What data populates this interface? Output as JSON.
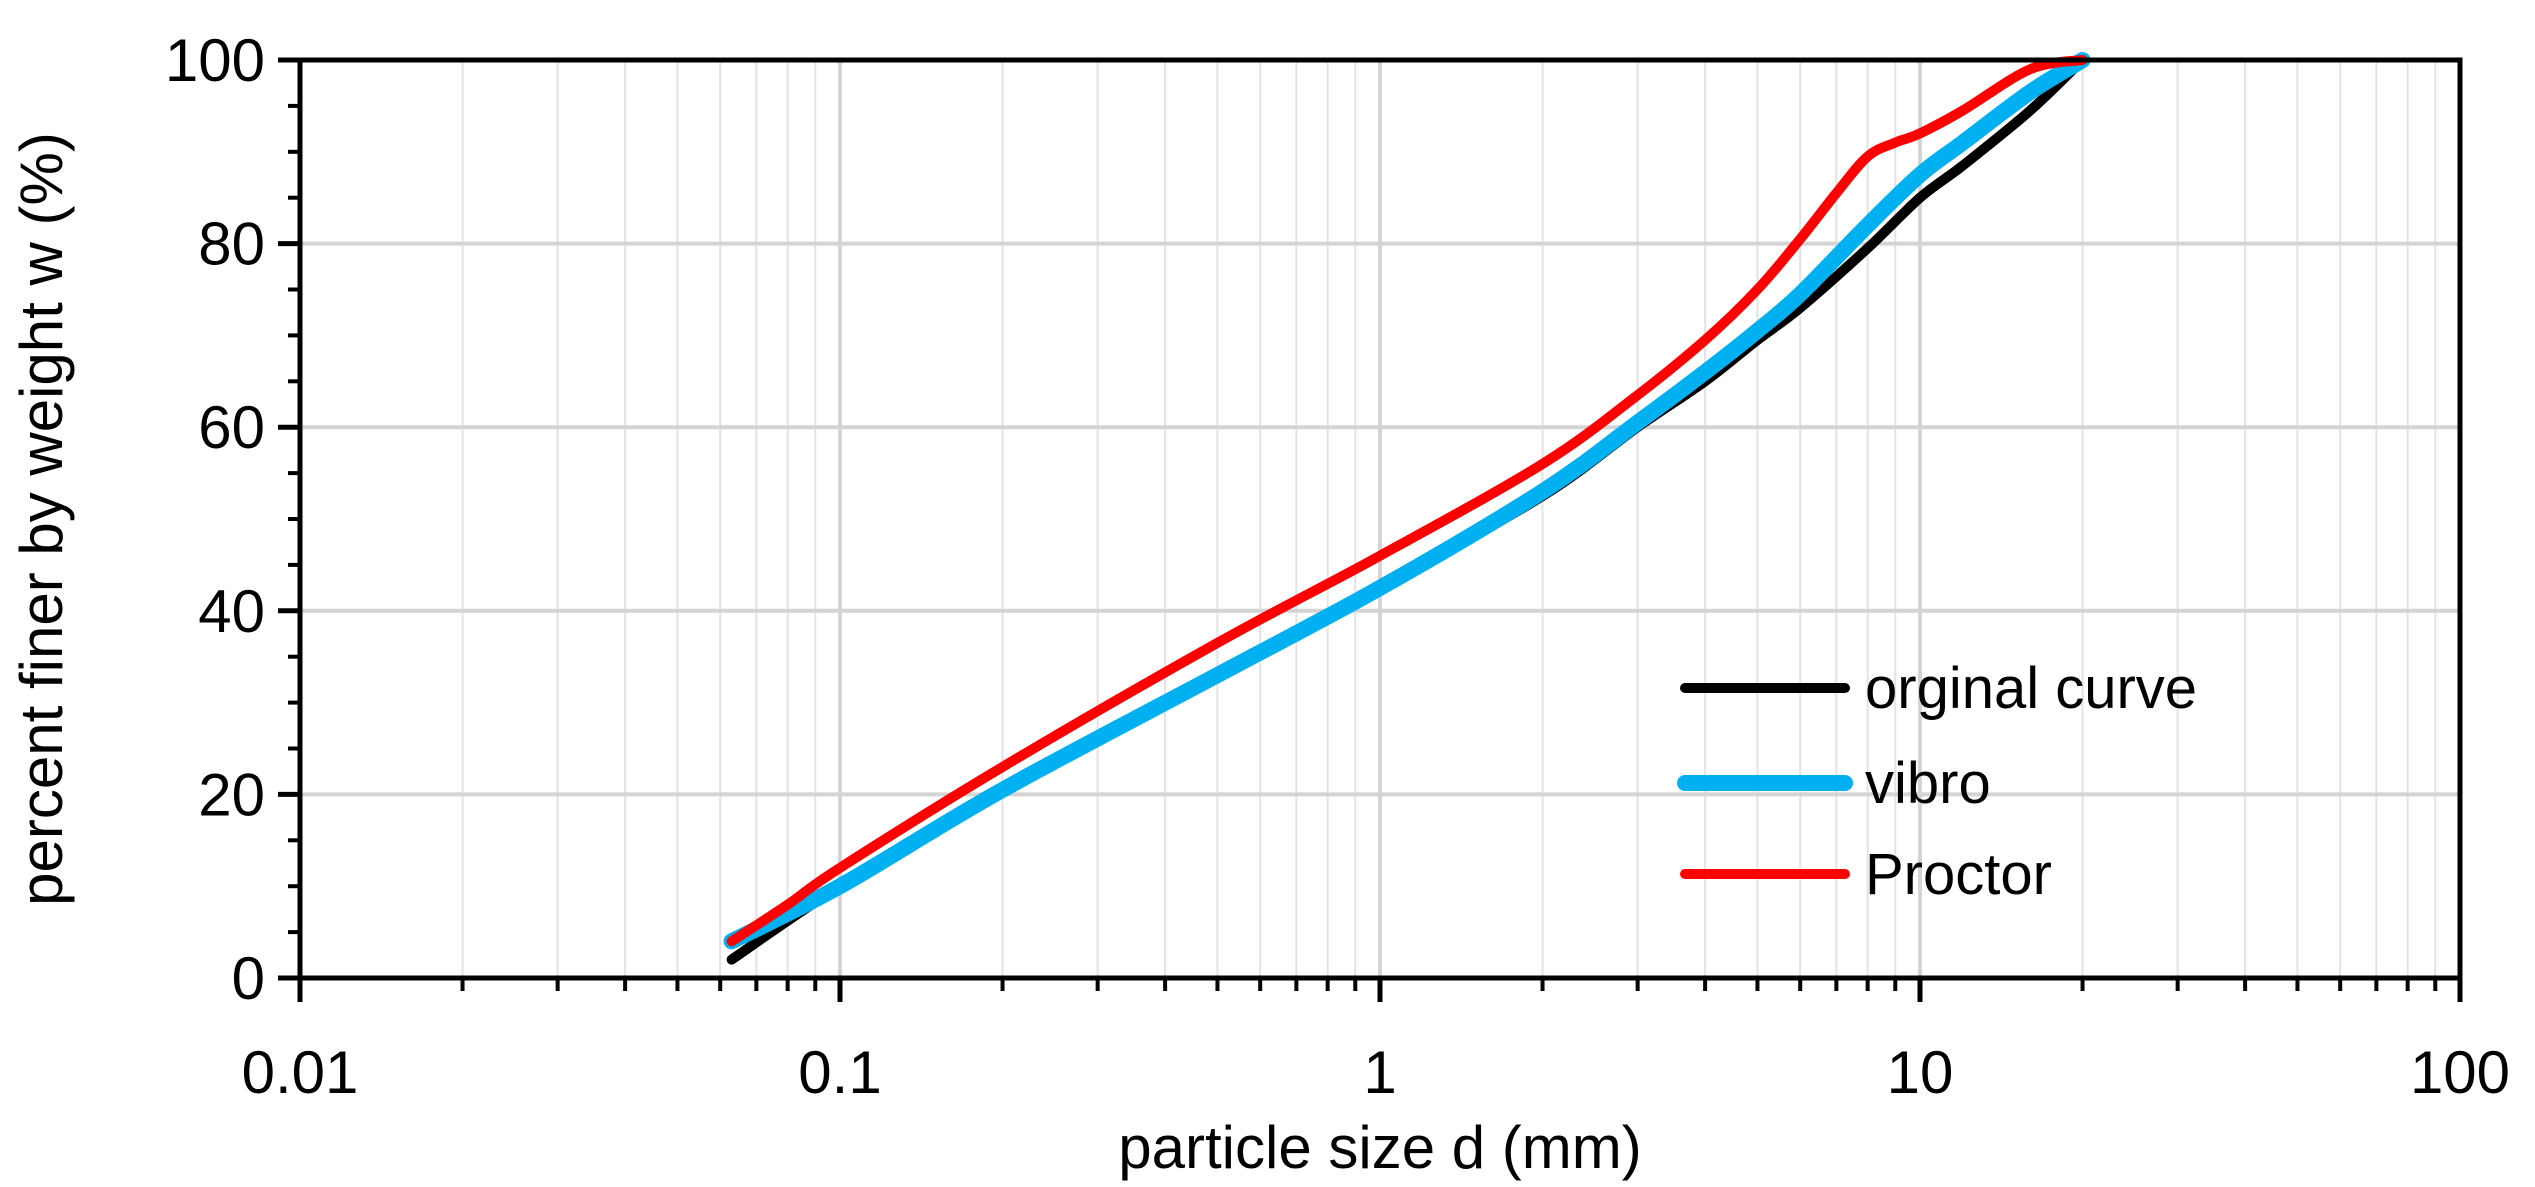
{
  "chart_data": {
    "type": "line",
    "title": "",
    "xlabel": "particle size d (mm)",
    "ylabel": "percent finer by weight w (%)",
    "xscale": "log",
    "xlim": [
      0.01,
      100
    ],
    "ylim": [
      0,
      100
    ],
    "x_ticks": [
      0.01,
      0.1,
      1,
      10,
      100
    ],
    "x_tick_labels": [
      "0.01",
      "0.1",
      "1",
      "10",
      "100"
    ],
    "y_ticks": [
      0,
      20,
      40,
      60,
      80,
      100
    ],
    "y_tick_labels": [
      "0",
      "20",
      "40",
      "60",
      "80",
      "100"
    ],
    "grid": true,
    "legend_position": "bottom-right",
    "series": [
      {
        "name": "orginal curve",
        "color": "#000000",
        "x": [
          0.063,
          0.1,
          0.2,
          0.5,
          1,
          2,
          3,
          4,
          5,
          6,
          8,
          10,
          12,
          16,
          20
        ],
        "y": [
          2,
          10,
          20.5,
          33,
          42.5,
          52.5,
          60,
          65,
          69.5,
          73,
          79.5,
          85,
          88.5,
          94.5,
          100
        ]
      },
      {
        "name": "vibro",
        "color": "#00B0F0",
        "x": [
          0.063,
          0.1,
          0.2,
          0.5,
          1,
          2,
          3,
          4,
          5,
          6,
          8,
          10,
          12,
          16,
          20
        ],
        "y": [
          4,
          10,
          20.5,
          33,
          42.5,
          53,
          60.5,
          66,
          70.5,
          74.5,
          82,
          87.5,
          91,
          96.5,
          100
        ]
      },
      {
        "name": "Proctor",
        "color": "#FF0000",
        "x": [
          0.063,
          0.08,
          0.1,
          0.2,
          0.5,
          1,
          2,
          3,
          4,
          5,
          6,
          7,
          8,
          9,
          10,
          12,
          16,
          20
        ],
        "y": [
          4,
          8,
          12,
          23,
          36.5,
          46,
          56,
          63.5,
          69.5,
          75,
          80.5,
          85.5,
          89.5,
          91,
          92,
          94.5,
          99,
          100
        ]
      }
    ]
  }
}
